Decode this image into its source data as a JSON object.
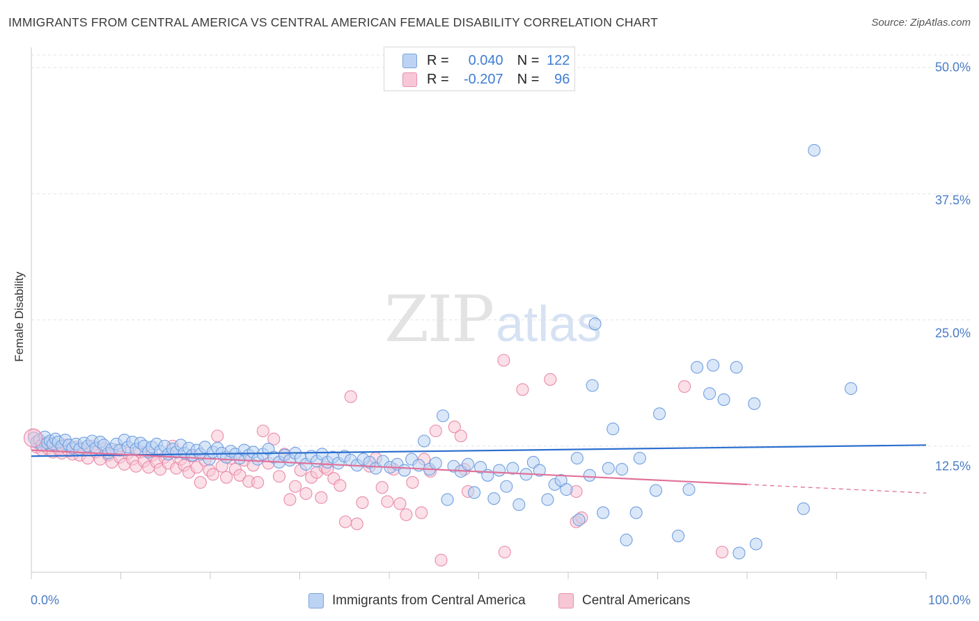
{
  "title": "IMMIGRANTS FROM CENTRAL AMERICA VS CENTRAL AMERICAN FEMALE DISABILITY CORRELATION CHART",
  "source": "Source: ZipAtlas.com",
  "watermark": {
    "part1": "ZIP",
    "part2": "atlas"
  },
  "colors": {
    "blue": "#6f9fe0",
    "blue_fill": "#bcd3f3",
    "blue_line": "#2b6fcf",
    "pink": "#e98aa9",
    "pink_fill": "#f7c7d6",
    "pink_line": "#e0719a",
    "axis_text": "#4a7cc4"
  },
  "legend": {
    "rows": [
      {
        "r_label": "R =",
        "r_value": "0.040",
        "n_label": "N =",
        "n_value": "122"
      },
      {
        "r_label": "R =",
        "r_value": "-0.207",
        "n_label": "N =",
        "n_value": "96"
      }
    ]
  },
  "chart_data": {
    "type": "scatter",
    "xlabel": "",
    "ylabel": "Female Disability",
    "xlim": [
      0,
      100
    ],
    "ylim": [
      0,
      50
    ],
    "x_tick_labels": [
      "0.0%",
      "100.0%"
    ],
    "y_ticks": [
      12.5,
      25.0,
      37.5,
      50.0
    ],
    "y_tick_labels": [
      "12.5%",
      "25.0%",
      "37.5%",
      "50.0%"
    ],
    "grid": true,
    "legend_position": "top-center",
    "series": [
      {
        "name": "Immigrants from Central America",
        "r": 0.04,
        "n": 122,
        "trend": {
          "x0": 0,
          "y0": 11.5,
          "x1": 100,
          "y1": 12.6
        },
        "points": [
          [
            0.3,
            13.3
          ],
          [
            0.6,
            12.9
          ],
          [
            0.9,
            13.1
          ],
          [
            1.2,
            12.6
          ],
          [
            1.5,
            13.4
          ],
          [
            1.8,
            12.8
          ],
          [
            2.1,
            13.0
          ],
          [
            2.4,
            12.7
          ],
          [
            2.7,
            13.2
          ],
          [
            3.0,
            12.9
          ],
          [
            3.4,
            12.5
          ],
          [
            3.8,
            13.1
          ],
          [
            4.2,
            12.6
          ],
          [
            4.6,
            12.3
          ],
          [
            5.0,
            12.7
          ],
          [
            5.4,
            12.2
          ],
          [
            5.9,
            12.8
          ],
          [
            6.3,
            12.5
          ],
          [
            6.8,
            13.0
          ],
          [
            7.2,
            12.3
          ],
          [
            7.7,
            12.9
          ],
          [
            8.1,
            12.6
          ],
          [
            8.6,
            11.8
          ],
          [
            9.0,
            12.2
          ],
          [
            9.5,
            12.7
          ],
          [
            9.9,
            12.1
          ],
          [
            10.4,
            13.1
          ],
          [
            10.8,
            12.4
          ],
          [
            11.3,
            12.9
          ],
          [
            11.7,
            12.2
          ],
          [
            12.2,
            12.8
          ],
          [
            12.6,
            12.5
          ],
          [
            13.1,
            11.9
          ],
          [
            13.5,
            12.4
          ],
          [
            14.0,
            12.7
          ],
          [
            14.4,
            12.0
          ],
          [
            14.9,
            12.5
          ],
          [
            15.3,
            11.7
          ],
          [
            15.8,
            12.2
          ],
          [
            16.2,
            11.9
          ],
          [
            16.7,
            12.6
          ],
          [
            17.1,
            11.8
          ],
          [
            17.6,
            12.3
          ],
          [
            18.0,
            11.6
          ],
          [
            18.5,
            12.1
          ],
          [
            18.9,
            11.7
          ],
          [
            19.4,
            12.4
          ],
          [
            19.9,
            11.2
          ],
          [
            20.3,
            11.9
          ],
          [
            20.8,
            12.3
          ],
          [
            21.3,
            11.8
          ],
          [
            21.8,
            11.4
          ],
          [
            22.3,
            12.0
          ],
          [
            22.8,
            11.7
          ],
          [
            23.3,
            11.3
          ],
          [
            23.8,
            12.1
          ],
          [
            24.3,
            11.6
          ],
          [
            24.8,
            11.9
          ],
          [
            25.3,
            11.2
          ],
          [
            25.9,
            11.7
          ],
          [
            26.5,
            12.2
          ],
          [
            27.1,
            11.4
          ],
          [
            27.7,
            10.9
          ],
          [
            28.3,
            11.6
          ],
          [
            28.9,
            11.1
          ],
          [
            29.5,
            11.8
          ],
          [
            30.1,
            11.3
          ],
          [
            30.7,
            10.7
          ],
          [
            31.3,
            11.5
          ],
          [
            31.9,
            11.0
          ],
          [
            32.5,
            11.7
          ],
          [
            33.1,
            10.9
          ],
          [
            33.7,
            11.4
          ],
          [
            34.3,
            10.8
          ],
          [
            35.0,
            11.5
          ],
          [
            35.7,
            11.1
          ],
          [
            36.4,
            10.6
          ],
          [
            37.1,
            11.2
          ],
          [
            37.8,
            10.9
          ],
          [
            38.5,
            10.3
          ],
          [
            39.3,
            11.0
          ],
          [
            40.1,
            10.4
          ],
          [
            40.9,
            10.7
          ],
          [
            41.7,
            10.1
          ],
          [
            42.5,
            11.2
          ],
          [
            43.3,
            10.6
          ],
          [
            43.9,
            13.0
          ],
          [
            44.5,
            10.2
          ],
          [
            45.2,
            10.8
          ],
          [
            46.0,
            15.5
          ],
          [
            46.5,
            7.2
          ],
          [
            47.2,
            10.5
          ],
          [
            48.0,
            10.0
          ],
          [
            48.8,
            10.7
          ],
          [
            49.5,
            7.9
          ],
          [
            50.2,
            10.4
          ],
          [
            51.0,
            9.6
          ],
          [
            51.7,
            7.3
          ],
          [
            52.3,
            10.1
          ],
          [
            53.1,
            8.5
          ],
          [
            53.8,
            10.3
          ],
          [
            54.5,
            6.7
          ],
          [
            55.3,
            9.7
          ],
          [
            56.1,
            10.9
          ],
          [
            56.8,
            10.1
          ],
          [
            57.7,
            7.2
          ],
          [
            58.5,
            8.7
          ],
          [
            59.2,
            9.1
          ],
          [
            59.8,
            8.2
          ],
          [
            61.0,
            11.3
          ],
          [
            61.2,
            5.2
          ],
          [
            62.4,
            9.6
          ],
          [
            62.7,
            18.5
          ],
          [
            63.0,
            24.6
          ],
          [
            63.9,
            5.9
          ],
          [
            64.5,
            10.3
          ],
          [
            65.0,
            14.2
          ],
          [
            66.0,
            10.2
          ],
          [
            66.5,
            3.2
          ],
          [
            67.6,
            5.9
          ],
          [
            68.0,
            11.3
          ],
          [
            69.8,
            8.1
          ],
          [
            70.2,
            15.7
          ],
          [
            72.3,
            3.6
          ],
          [
            73.5,
            8.2
          ],
          [
            74.4,
            20.3
          ],
          [
            75.8,
            17.7
          ],
          [
            76.2,
            20.5
          ],
          [
            77.4,
            17.1
          ],
          [
            78.8,
            20.3
          ],
          [
            79.1,
            1.9
          ],
          [
            80.8,
            16.7
          ],
          [
            81.0,
            2.8
          ],
          [
            86.3,
            6.3
          ],
          [
            87.5,
            41.8
          ],
          [
            91.6,
            18.2
          ]
        ]
      },
      {
        "name": "Central Americans",
        "r": -0.207,
        "n": 96,
        "trend": {
          "x0": 0,
          "y0": 12.1,
          "x1": 80,
          "y1": 8.7
        },
        "trend_dashed": {
          "x0": 80,
          "y0": 8.7,
          "x1": 100,
          "y1": 7.85
        },
        "points": [
          [
            0.3,
            13.6
          ],
          [
            0.6,
            12.4
          ],
          [
            0.9,
            12.9
          ],
          [
            1.2,
            12.1
          ],
          [
            1.5,
            12.7
          ],
          [
            1.8,
            12.3
          ],
          [
            2.1,
            12.8
          ],
          [
            2.4,
            11.9
          ],
          [
            2.7,
            12.5
          ],
          [
            3.0,
            12.2
          ],
          [
            3.4,
            11.8
          ],
          [
            3.8,
            12.6
          ],
          [
            4.2,
            12.0
          ],
          [
            4.6,
            11.7
          ],
          [
            5.0,
            12.4
          ],
          [
            5.4,
            11.6
          ],
          [
            5.9,
            12.2
          ],
          [
            6.3,
            11.3
          ],
          [
            6.8,
            12.5
          ],
          [
            7.2,
            11.9
          ],
          [
            7.7,
            11.2
          ],
          [
            8.1,
            12.3
          ],
          [
            8.6,
            11.6
          ],
          [
            9.0,
            10.9
          ],
          [
            9.5,
            12.1
          ],
          [
            9.9,
            11.4
          ],
          [
            10.4,
            10.7
          ],
          [
            10.8,
            11.8
          ],
          [
            11.3,
            11.2
          ],
          [
            11.7,
            10.5
          ],
          [
            12.2,
            11.9
          ],
          [
            12.6,
            11.0
          ],
          [
            13.1,
            10.4
          ],
          [
            13.5,
            11.6
          ],
          [
            14.0,
            10.9
          ],
          [
            14.4,
            10.2
          ],
          [
            14.9,
            11.4
          ],
          [
            15.3,
            10.8
          ],
          [
            15.8,
            12.5
          ],
          [
            16.2,
            10.3
          ],
          [
            16.7,
            11.2
          ],
          [
            17.1,
            10.6
          ],
          [
            17.6,
            9.9
          ],
          [
            18.0,
            11.5
          ],
          [
            18.5,
            10.4
          ],
          [
            18.9,
            8.9
          ],
          [
            19.4,
            11.1
          ],
          [
            19.9,
            10.1
          ],
          [
            20.3,
            9.7
          ],
          [
            20.8,
            13.5
          ],
          [
            21.3,
            10.5
          ],
          [
            21.8,
            9.4
          ],
          [
            22.3,
            11.3
          ],
          [
            22.8,
            10.2
          ],
          [
            23.3,
            9.6
          ],
          [
            23.8,
            11.1
          ],
          [
            24.3,
            9.0
          ],
          [
            24.8,
            10.6
          ],
          [
            25.3,
            8.9
          ],
          [
            25.9,
            14.0
          ],
          [
            26.5,
            10.8
          ],
          [
            27.1,
            13.2
          ],
          [
            27.7,
            9.5
          ],
          [
            28.3,
            11.7
          ],
          [
            28.9,
            7.2
          ],
          [
            29.5,
            8.5
          ],
          [
            30.1,
            10.1
          ],
          [
            30.7,
            7.8
          ],
          [
            31.3,
            9.4
          ],
          [
            31.9,
            9.9
          ],
          [
            32.4,
            7.4
          ],
          [
            32.8,
            10.4
          ],
          [
            33.1,
            10.2
          ],
          [
            33.8,
            9.3
          ],
          [
            34.5,
            8.6
          ],
          [
            35.1,
            5.0
          ],
          [
            35.7,
            17.4
          ],
          [
            36.4,
            4.8
          ],
          [
            37.0,
            6.9
          ],
          [
            37.8,
            10.5
          ],
          [
            38.5,
            11.3
          ],
          [
            39.2,
            8.4
          ],
          [
            39.8,
            7.0
          ],
          [
            40.5,
            10.2
          ],
          [
            41.2,
            6.8
          ],
          [
            41.9,
            5.7
          ],
          [
            42.6,
            8.9
          ],
          [
            43.6,
            5.9
          ],
          [
            43.9,
            11.2
          ],
          [
            44.6,
            10.0
          ],
          [
            45.2,
            14.0
          ],
          [
            45.8,
            1.2
          ],
          [
            47.3,
            14.4
          ],
          [
            48.0,
            13.5
          ],
          [
            48.4,
            10.2
          ],
          [
            48.8,
            8.0
          ],
          [
            52.8,
            21.0
          ],
          [
            52.9,
            2.0
          ],
          [
            54.9,
            18.1
          ],
          [
            58.0,
            19.1
          ]
        ],
        "extra_points": [
          [
            60.9,
            8.0
          ],
          [
            60.9,
            5.0
          ],
          [
            61.5,
            5.4
          ],
          [
            73.0,
            18.4
          ],
          [
            77.2,
            2.0
          ]
        ]
      }
    ]
  },
  "bottom_legend": {
    "items": [
      {
        "label": "Immigrants from Central America"
      },
      {
        "label": "Central Americans"
      }
    ]
  }
}
